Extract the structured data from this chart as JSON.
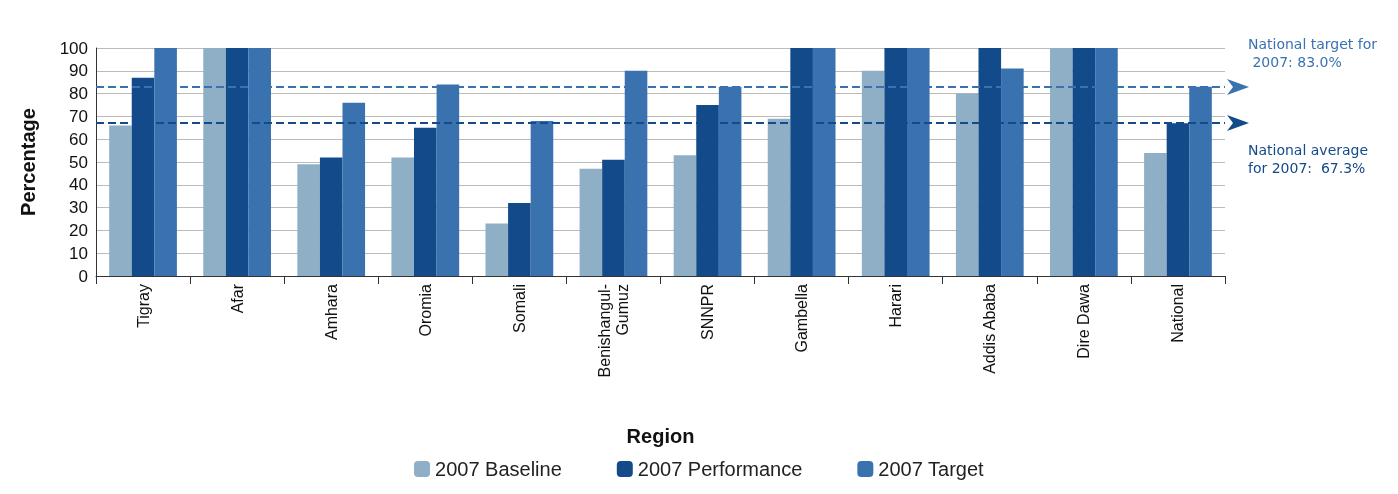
{
  "chart_data": {
    "type": "bar",
    "xlabel": "Region",
    "ylabel": "Percentage",
    "categories": [
      "Tigray",
      "Afar",
      "Amhara",
      "Oromia",
      "Somali",
      "Benishangul-Gumuz",
      "SNNPR",
      "Gambella",
      "Harari",
      "Addis Ababa",
      "Dire Dawa",
      "National"
    ],
    "series": [
      {
        "name": "2007 Baseline",
        "color": "#8fafc6",
        "values": [
          66,
          100,
          49,
          52,
          23,
          47,
          53,
          69,
          90,
          80,
          100,
          54
        ]
      },
      {
        "name": "2007 Performance",
        "color": "#124a8a",
        "values": [
          87,
          100,
          52,
          65,
          32,
          51,
          75,
          100,
          100,
          100,
          100,
          67
        ]
      },
      {
        "name": "2007 Target",
        "color": "#3a72b0",
        "values": [
          100,
          100,
          76,
          84,
          68,
          90,
          83,
          100,
          100,
          91,
          100,
          83
        ]
      }
    ],
    "ylim": [
      0,
      100
    ],
    "yticks": [
      0,
      10,
      20,
      30,
      40,
      50,
      60,
      70,
      80,
      90,
      100
    ],
    "grid": "y",
    "legend": "bottom",
    "ref_lines": [
      {
        "axis": "y",
        "value": 83,
        "label": "National target for 2007: 83.0%",
        "color": "#3a72b0",
        "line_style": "dashed"
      },
      {
        "axis": "y",
        "value": 67.3,
        "label": "National average for 2007:  67.3%",
        "color": "#124a8a",
        "line_style": "dashed"
      }
    ]
  }
}
